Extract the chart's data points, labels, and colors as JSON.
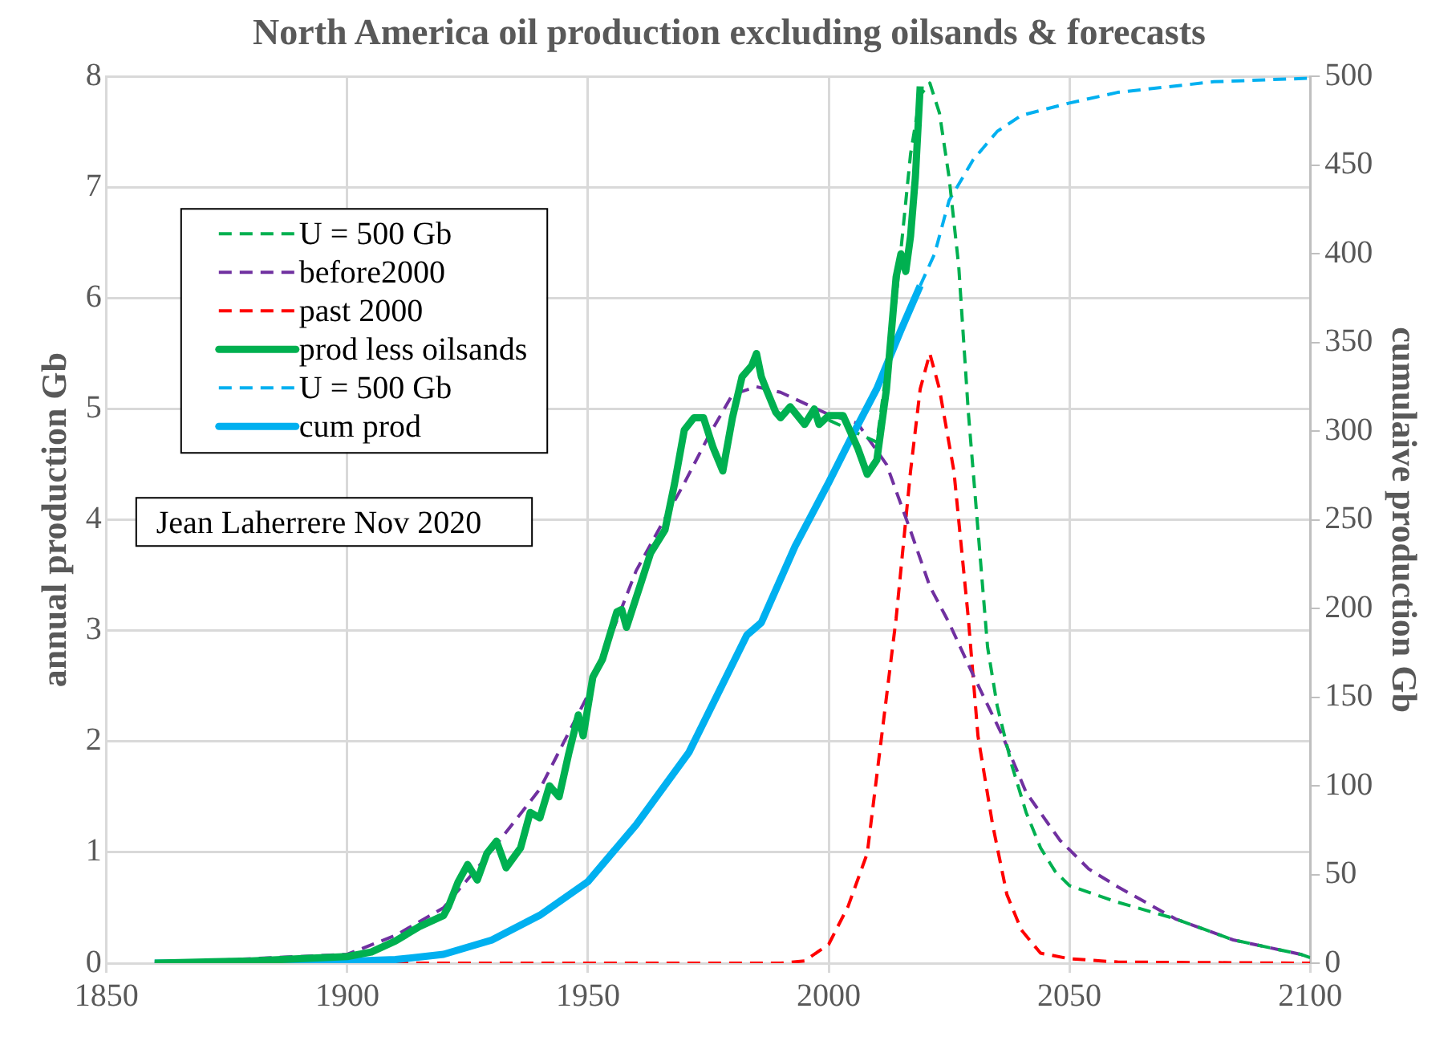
{
  "chart_data": {
    "type": "line",
    "title": "North America oil production excluding oilsands & forecasts",
    "ylabel": "annual production Gb",
    "y2label": "cumulaive production Gb",
    "xlim": [
      1850,
      2100
    ],
    "xticks": [
      1850,
      1900,
      1950,
      2000,
      2050,
      2100
    ],
    "ylim": [
      0,
      8
    ],
    "yticks": [
      0,
      1,
      2,
      3,
      4,
      5,
      6,
      7,
      8
    ],
    "y2lim": [
      0,
      500
    ],
    "y2ticks": [
      0,
      50,
      100,
      150,
      200,
      250,
      300,
      350,
      400,
      450,
      500
    ],
    "grid": true,
    "legend": "top left",
    "marker": "none",
    "annotations": [
      "Jean Laherrere Nov 2020"
    ],
    "series": [
      {
        "name": "U = 500 Gb",
        "color": "#00b050",
        "line_style": "dashed",
        "x": [
          2000,
          2005,
          2010,
          2014,
          2017,
          2019,
          2021,
          2023,
          2025,
          2027,
          2029,
          2031,
          2033,
          2035,
          2038,
          2041,
          2044,
          2047,
          2050,
          2060,
          2072,
          2084,
          2098,
          2100
        ],
        "values": [
          4.9,
          4.8,
          4.7,
          6.0,
          7.3,
          7.83,
          7.94,
          7.67,
          7.09,
          6.29,
          4.97,
          3.91,
          2.85,
          2.32,
          1.79,
          1.36,
          1.04,
          0.83,
          0.7,
          0.55,
          0.4,
          0.21,
          0.08,
          0.05
        ]
      },
      {
        "name": "before2000",
        "color": "#7030a0",
        "line_style": "dashed",
        "x": [
          1860,
          1900,
          1910,
          1920,
          1929,
          1940,
          1950,
          1960,
          1970,
          1975,
          1980,
          1985,
          1990,
          1995,
          2000,
          2006,
          2012,
          2017,
          2021,
          2025,
          2030,
          2036,
          2041,
          2048,
          2054,
          2060,
          2072,
          2084,
          2098,
          2100
        ],
        "values": [
          0,
          0.08,
          0.25,
          0.5,
          0.96,
          1.57,
          2.42,
          3.54,
          4.33,
          4.75,
          5.13,
          5.2,
          5.15,
          5.05,
          4.95,
          4.87,
          4.5,
          3.9,
          3.4,
          3.07,
          2.6,
          2.06,
          1.54,
          1.11,
          0.85,
          0.69,
          0.4,
          0.21,
          0.08,
          0.05
        ]
      },
      {
        "name": "past 2000",
        "color": "#ff0000",
        "line_style": "dashed",
        "x": [
          1910,
          1990,
          1995,
          2000,
          2004,
          2008,
          2011,
          2014,
          2017,
          2019,
          2021,
          2023,
          2026,
          2029,
          2031,
          2034,
          2037,
          2040,
          2044,
          2050,
          2060,
          2100
        ],
        "values": [
          0,
          0,
          0.02,
          0.17,
          0.51,
          0.99,
          2.05,
          3.11,
          4.44,
          5.18,
          5.5,
          5.18,
          4.44,
          3.11,
          2.05,
          1.26,
          0.62,
          0.3,
          0.09,
          0.04,
          0.01,
          0
        ]
      },
      {
        "name": "prod less oilsands",
        "color": "#00b050",
        "line_style": "solid",
        "x": [
          1860,
          1880,
          1890,
          1900,
          1905,
          1910,
          1915,
          1920,
          1921,
          1923,
          1925,
          1927,
          1929,
          1931,
          1933,
          1936,
          1938,
          1940,
          1942,
          1944,
          1946,
          1948,
          1949,
          1951,
          1953,
          1956,
          1957,
          1958,
          1961,
          1963,
          1966,
          1968,
          1970,
          1972,
          1974,
          1976,
          1978,
          1980,
          1982,
          1984,
          1985,
          1986,
          1987,
          1989,
          1990,
          1992,
          1995,
          1997,
          1998,
          2000,
          2003,
          2006,
          2008,
          2010,
          2012,
          2014,
          2015,
          2016,
          2017,
          2018,
          2019
        ],
        "values": [
          0,
          0.02,
          0.04,
          0.06,
          0.1,
          0.2,
          0.33,
          0.43,
          0.51,
          0.73,
          0.89,
          0.75,
          0.99,
          1.1,
          0.86,
          1.04,
          1.36,
          1.31,
          1.6,
          1.5,
          1.89,
          2.24,
          2.05,
          2.58,
          2.74,
          3.17,
          3.19,
          3.03,
          3.43,
          3.7,
          3.91,
          4.33,
          4.81,
          4.92,
          4.92,
          4.65,
          4.44,
          4.92,
          5.29,
          5.39,
          5.5,
          5.29,
          5.18,
          4.97,
          4.92,
          5.02,
          4.86,
          5.0,
          4.86,
          4.94,
          4.94,
          4.65,
          4.41,
          4.54,
          5.18,
          6.19,
          6.4,
          6.24,
          6.56,
          7.09,
          7.91
        ]
      },
      {
        "name": "U = 500 Gb",
        "color": "#00b0f0",
        "line_style": "dashed",
        "axis": "y2",
        "x": [
          2019,
          2022,
          2025,
          2030,
          2035,
          2040,
          2050,
          2060,
          2070,
          2080,
          2100
        ],
        "values": [
          382,
          400,
          430,
          453,
          469,
          478,
          485,
          491,
          494,
          497,
          499
        ]
      },
      {
        "name": "cum prod",
        "color": "#00b0f0",
        "line_style": "solid",
        "axis": "y2",
        "x": [
          1860,
          1900,
          1910,
          1920,
          1930,
          1940,
          1950,
          1960,
          1971,
          1983,
          1986,
          1993,
          2000,
          2005,
          2010,
          2015,
          2019
        ],
        "values": [
          0,
          1,
          2,
          5,
          13,
          27,
          46,
          78,
          119,
          185,
          192,
          235,
          271,
          298,
          324,
          357,
          382
        ]
      }
    ]
  }
}
